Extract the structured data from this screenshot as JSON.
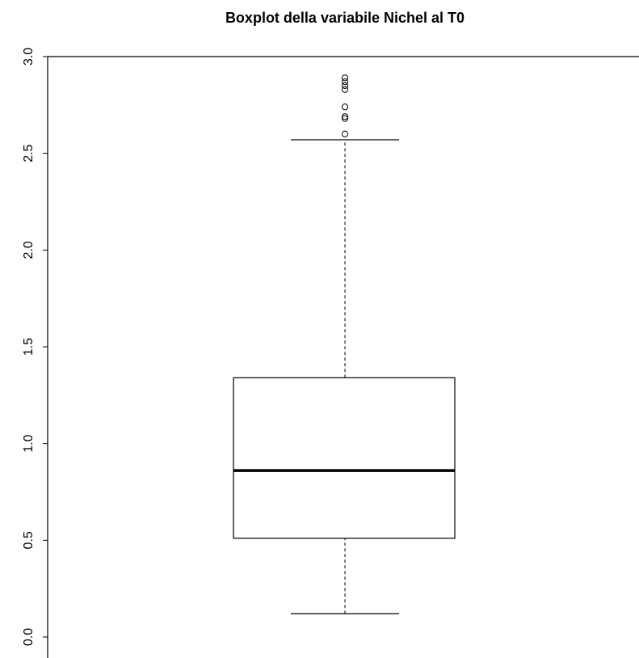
{
  "chart_data": {
    "type": "boxplot",
    "title": "Boxplot della variabile Nichel al T0",
    "xlabel": "",
    "ylabel": "",
    "ylim": [
      -0.08,
      3.0
    ],
    "yticks": [
      0.0,
      0.5,
      1.0,
      1.5,
      2.0,
      2.5,
      3.0
    ],
    "ytick_labels": [
      "0.0",
      "0.5",
      "1.0",
      "1.5",
      "2.0",
      "2.5",
      "3.0"
    ],
    "grid": false,
    "box": {
      "whisker_low": 0.12,
      "q1": 0.51,
      "median": 0.86,
      "q3": 1.34,
      "whisker_high": 2.57,
      "outliers": [
        2.6,
        2.68,
        2.69,
        2.74,
        2.83,
        2.85,
        2.87,
        2.89
      ]
    }
  }
}
